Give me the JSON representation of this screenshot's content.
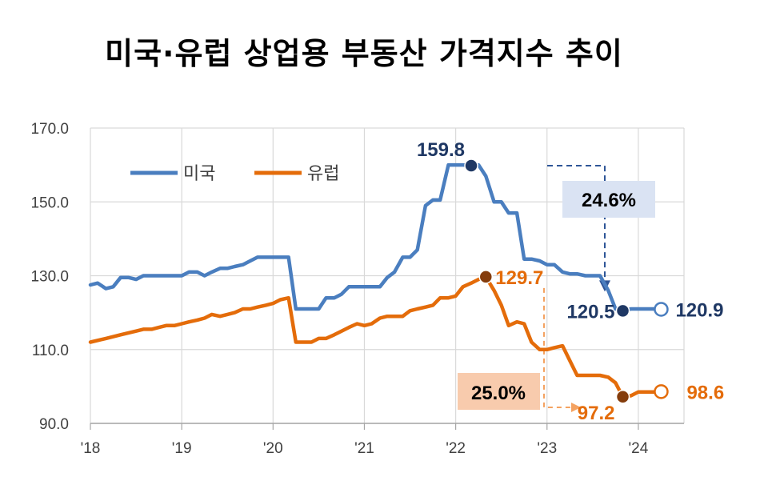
{
  "chart_data": {
    "type": "line",
    "title": "미국·유럽 상업용 부동산 가격지수 추이",
    "ylim": [
      90,
      170
    ],
    "yticks": [
      "170.0",
      "150.0",
      "130.0",
      "110.0",
      "90.0"
    ],
    "ytick_values": [
      170,
      150,
      130,
      110,
      90
    ],
    "xlim": [
      2018.0,
      2024.5
    ],
    "xticks": [
      "'18",
      "'19",
      "'20",
      "'21",
      "'22",
      "'23",
      "'24"
    ],
    "xtick_values": [
      2018,
      2019,
      2020,
      2021,
      2022,
      2023,
      2024
    ],
    "grid": true,
    "legend_position": "top-left",
    "series": [
      {
        "name": "미국",
        "color": "#4a7ebf",
        "points": [
          [
            2018.0,
            127.5
          ],
          [
            2018.08,
            128
          ],
          [
            2018.17,
            126.5
          ],
          [
            2018.25,
            127
          ],
          [
            2018.33,
            129.5
          ],
          [
            2018.42,
            129.5
          ],
          [
            2018.5,
            129
          ],
          [
            2018.58,
            130
          ],
          [
            2018.67,
            130
          ],
          [
            2018.75,
            130
          ],
          [
            2018.83,
            130
          ],
          [
            2018.92,
            130
          ],
          [
            2019.0,
            130
          ],
          [
            2019.08,
            131
          ],
          [
            2019.17,
            131
          ],
          [
            2019.25,
            130
          ],
          [
            2019.33,
            131
          ],
          [
            2019.42,
            132
          ],
          [
            2019.5,
            132
          ],
          [
            2019.58,
            132.5
          ],
          [
            2019.67,
            133
          ],
          [
            2019.75,
            134
          ],
          [
            2019.83,
            135
          ],
          [
            2019.92,
            135
          ],
          [
            2020.0,
            135
          ],
          [
            2020.08,
            135
          ],
          [
            2020.17,
            135
          ],
          [
            2020.25,
            121
          ],
          [
            2020.33,
            121
          ],
          [
            2020.42,
            121
          ],
          [
            2020.5,
            121
          ],
          [
            2020.58,
            124
          ],
          [
            2020.67,
            124
          ],
          [
            2020.75,
            125
          ],
          [
            2020.83,
            127
          ],
          [
            2020.92,
            127
          ],
          [
            2021.0,
            127
          ],
          [
            2021.08,
            127
          ],
          [
            2021.17,
            127
          ],
          [
            2021.25,
            129.5
          ],
          [
            2021.33,
            131
          ],
          [
            2021.42,
            135
          ],
          [
            2021.5,
            135
          ],
          [
            2021.58,
            137
          ],
          [
            2021.67,
            149
          ],
          [
            2021.75,
            150.5
          ],
          [
            2021.83,
            150.5
          ],
          [
            2021.92,
            160
          ],
          [
            2022.0,
            160
          ],
          [
            2022.08,
            160
          ],
          [
            2022.17,
            159.8
          ],
          [
            2022.25,
            160
          ],
          [
            2022.33,
            157
          ],
          [
            2022.42,
            150
          ],
          [
            2022.5,
            150
          ],
          [
            2022.58,
            147
          ],
          [
            2022.67,
            147
          ],
          [
            2022.75,
            134.5
          ],
          [
            2022.83,
            134.5
          ],
          [
            2022.92,
            134
          ],
          [
            2023.0,
            133
          ],
          [
            2023.08,
            133
          ],
          [
            2023.17,
            131
          ],
          [
            2023.25,
            130.5
          ],
          [
            2023.33,
            130.5
          ],
          [
            2023.42,
            130
          ],
          [
            2023.5,
            130
          ],
          [
            2023.58,
            130
          ],
          [
            2023.67,
            126
          ],
          [
            2023.75,
            121
          ],
          [
            2023.83,
            120.5
          ],
          [
            2023.92,
            121
          ],
          [
            2024.0,
            121
          ],
          [
            2024.08,
            121
          ],
          [
            2024.17,
            121
          ],
          [
            2024.25,
            120.9
          ]
        ],
        "highlights": [
          {
            "x": 2022.17,
            "y": 159.8,
            "label": "159.8",
            "hollow": false
          },
          {
            "x": 2023.83,
            "y": 120.5,
            "label": "120.5",
            "hollow": false
          },
          {
            "x": 2024.25,
            "y": 120.9,
            "label": "120.9",
            "hollow": true
          }
        ],
        "change_label": "24.6%"
      },
      {
        "name": "유럽",
        "color": "#e46c0a",
        "points": [
          [
            2018.0,
            112
          ],
          [
            2018.17,
            113
          ],
          [
            2018.33,
            114
          ],
          [
            2018.5,
            115
          ],
          [
            2018.58,
            115.5
          ],
          [
            2018.67,
            115.5
          ],
          [
            2018.75,
            116
          ],
          [
            2018.83,
            116.5
          ],
          [
            2018.92,
            116.5
          ],
          [
            2019.0,
            117
          ],
          [
            2019.08,
            117.5
          ],
          [
            2019.17,
            118
          ],
          [
            2019.25,
            118.5
          ],
          [
            2019.33,
            119.5
          ],
          [
            2019.42,
            119
          ],
          [
            2019.5,
            119.5
          ],
          [
            2019.58,
            120
          ],
          [
            2019.67,
            121
          ],
          [
            2019.75,
            121
          ],
          [
            2019.83,
            121.5
          ],
          [
            2019.92,
            122
          ],
          [
            2020.0,
            122.5
          ],
          [
            2020.08,
            123.5
          ],
          [
            2020.17,
            124
          ],
          [
            2020.25,
            112
          ],
          [
            2020.33,
            112
          ],
          [
            2020.42,
            112
          ],
          [
            2020.5,
            113
          ],
          [
            2020.58,
            113
          ],
          [
            2020.67,
            114
          ],
          [
            2020.75,
            115
          ],
          [
            2020.83,
            116
          ],
          [
            2020.92,
            117
          ],
          [
            2021.0,
            116.5
          ],
          [
            2021.08,
            117
          ],
          [
            2021.17,
            118.5
          ],
          [
            2021.25,
            119
          ],
          [
            2021.33,
            119
          ],
          [
            2021.42,
            119
          ],
          [
            2021.5,
            120.5
          ],
          [
            2021.58,
            121
          ],
          [
            2021.67,
            121.5
          ],
          [
            2021.75,
            122
          ],
          [
            2021.83,
            124
          ],
          [
            2021.92,
            124
          ],
          [
            2022.0,
            124.5
          ],
          [
            2022.08,
            127
          ],
          [
            2022.17,
            128
          ],
          [
            2022.25,
            129
          ],
          [
            2022.33,
            129.7
          ],
          [
            2022.42,
            126
          ],
          [
            2022.5,
            122
          ],
          [
            2022.58,
            116.5
          ],
          [
            2022.67,
            117.5
          ],
          [
            2022.75,
            117
          ],
          [
            2022.83,
            112
          ],
          [
            2022.92,
            110
          ],
          [
            2023.0,
            110
          ],
          [
            2023.08,
            110.5
          ],
          [
            2023.17,
            111
          ],
          [
            2023.25,
            107
          ],
          [
            2023.33,
            103
          ],
          [
            2023.42,
            103
          ],
          [
            2023.5,
            103
          ],
          [
            2023.58,
            103
          ],
          [
            2023.67,
            102.5
          ],
          [
            2023.75,
            101
          ],
          [
            2023.83,
            97.2
          ],
          [
            2023.92,
            97.5
          ],
          [
            2024.0,
            98.5
          ],
          [
            2024.08,
            98.5
          ],
          [
            2024.17,
            98.5
          ],
          [
            2024.25,
            98.6
          ]
        ],
        "highlights": [
          {
            "x": 2022.33,
            "y": 129.7,
            "label": "129.7",
            "hollow": false
          },
          {
            "x": 2023.83,
            "y": 97.2,
            "label": "97.2",
            "hollow": false
          },
          {
            "x": 2024.25,
            "y": 98.6,
            "label": "98.6",
            "hollow": true
          }
        ],
        "change_label": "25.0%"
      }
    ]
  }
}
